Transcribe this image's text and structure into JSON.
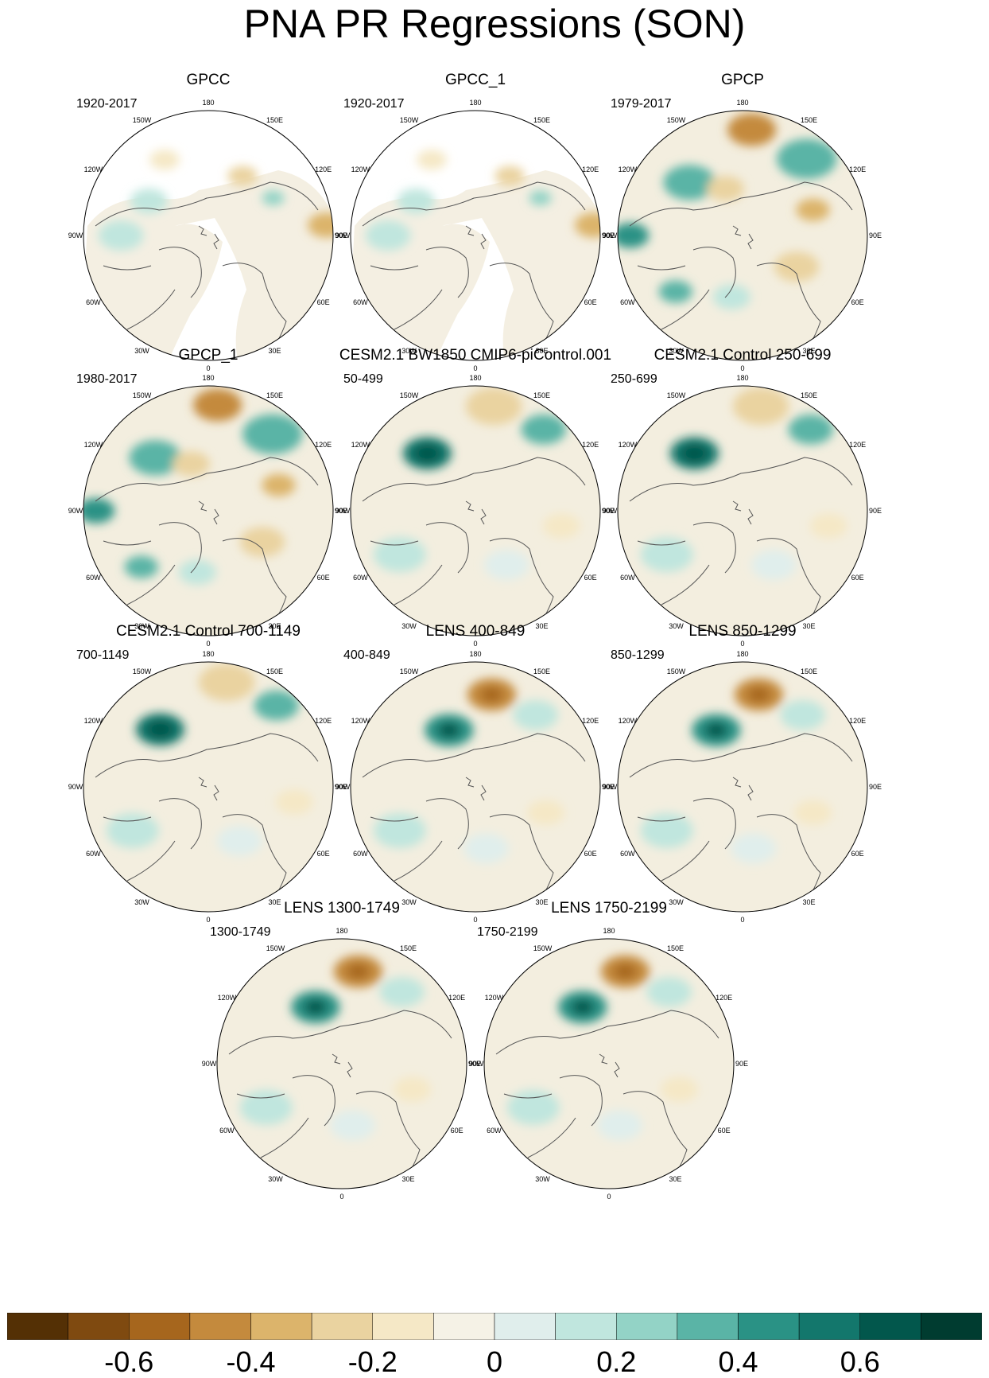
{
  "title": "PNA PR Regressions (SON)",
  "longitude_labels": [
    "180",
    "150E",
    "120E",
    "90E",
    "60E",
    "30E",
    "0",
    "30W",
    "60W",
    "90W",
    "120W",
    "150W"
  ],
  "panels": [
    {
      "title": "GPCC",
      "period": "1920-2017",
      "pattern": "gpcc"
    },
    {
      "title": "GPCC_1",
      "period": "1920-2017",
      "pattern": "gpcc"
    },
    {
      "title": "GPCP",
      "period": "1979-2017",
      "pattern": "gpcp"
    },
    {
      "title": "GPCP_1",
      "period": "1980-2017",
      "pattern": "gpcp"
    },
    {
      "title": "CESM2.1 BW1850 CMIP6-piControl.001",
      "period": "50-499",
      "pattern": "model"
    },
    {
      "title": "CESM2.1 Control 250-699",
      "period": "250-699",
      "pattern": "model"
    },
    {
      "title": "CESM2.1 Control 700-1149",
      "period": "700-1149",
      "pattern": "model"
    },
    {
      "title": "LENS 400-849",
      "period": "400-849",
      "pattern": "lens"
    },
    {
      "title": "LENS 850-1299",
      "period": "850-1299",
      "pattern": "lens"
    },
    {
      "title": "LENS 1300-1749",
      "period": "1300-1749",
      "pattern": "lens"
    },
    {
      "title": "LENS 1750-2199",
      "period": "1750-2199",
      "pattern": "lens"
    }
  ],
  "colorbar": {
    "colors": [
      "#543005",
      "#7f4a10",
      "#a6661d",
      "#c48a3d",
      "#dcb46b",
      "#ead3a0",
      "#f5e8c6",
      "#f5f2e6",
      "#e0eeec",
      "#c0e6de",
      "#93d3c6",
      "#5ab4a6",
      "#2a9285",
      "#13776c",
      "#02574c",
      "#003c30"
    ],
    "tick_labels": [
      "-0.6",
      "-0.4",
      "-0.2",
      "0",
      "0.2",
      "0.4",
      "0.6"
    ]
  }
}
